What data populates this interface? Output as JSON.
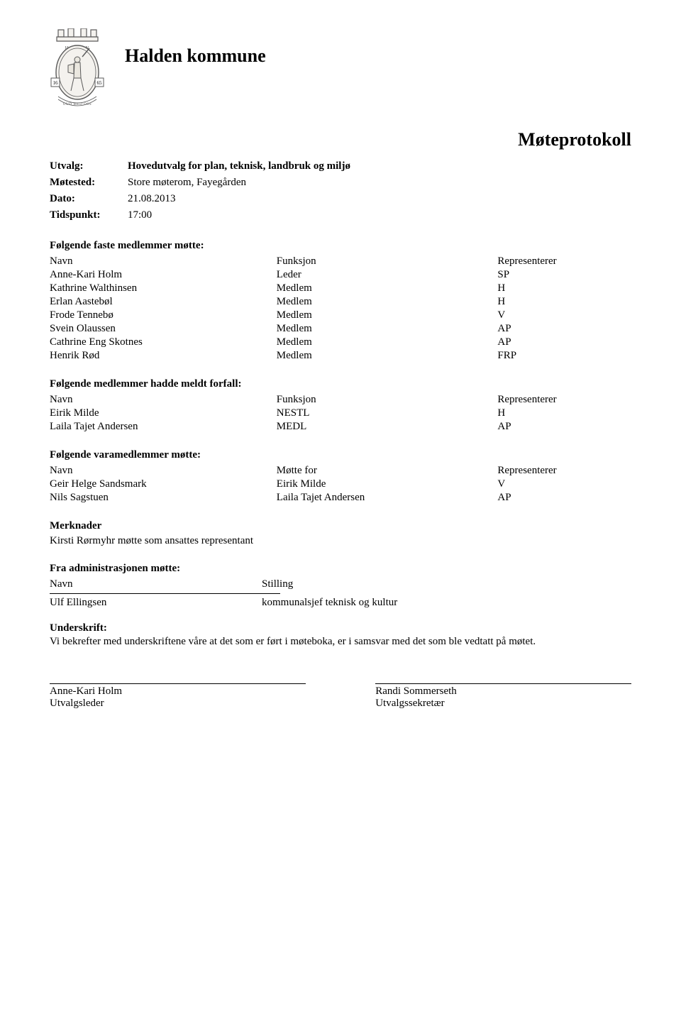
{
  "header": {
    "org": "Halden kommune",
    "doc_title": "Møteprotokoll"
  },
  "meta": {
    "utvalg_label": "Utvalg:",
    "utvalg_value": "Hovedutvalg for plan, teknisk, landbruk og miljø",
    "motested_label": "Møtested:",
    "motested_value": "Store møterom, Fayegården",
    "dato_label": "Dato:",
    "dato_value": "21.08.2013",
    "tidspunkt_label": "Tidspunkt:",
    "tidspunkt_value": "17:00"
  },
  "section1": {
    "title": "Følgende faste medlemmer møtte:",
    "headers": {
      "c1": "Navn",
      "c2": "Funksjon",
      "c3": "Representerer"
    },
    "rows": [
      {
        "c1": "Anne-Kari Holm",
        "c2": "Leder",
        "c3": "SP"
      },
      {
        "c1": "Kathrine Walthinsen",
        "c2": "Medlem",
        "c3": "H"
      },
      {
        "c1": "Erlan Aastebøl",
        "c2": "Medlem",
        "c3": "H"
      },
      {
        "c1": "Frode Tennebø",
        "c2": "Medlem",
        "c3": "V"
      },
      {
        "c1": "Svein Olaussen",
        "c2": "Medlem",
        "c3": "AP"
      },
      {
        "c1": "Cathrine Eng Skotnes",
        "c2": "Medlem",
        "c3": "AP"
      },
      {
        "c1": "Henrik Rød",
        "c2": "Medlem",
        "c3": "FRP"
      }
    ]
  },
  "section2": {
    "title": "Følgende medlemmer hadde meldt forfall:",
    "headers": {
      "c1": "Navn",
      "c2": "Funksjon",
      "c3": "Representerer"
    },
    "rows": [
      {
        "c1": "Eirik Milde",
        "c2": "NESTL",
        "c3": "H"
      },
      {
        "c1": "Laila Tajet Andersen",
        "c2": "MEDL",
        "c3": "AP"
      }
    ]
  },
  "section3": {
    "title": "Følgende varamedlemmer møtte:",
    "headers": {
      "c1": "Navn",
      "c2": "Møtte for",
      "c3": "Representerer"
    },
    "rows": [
      {
        "c1": "Geir Helge Sandsmark",
        "c2": "Eirik Milde",
        "c3": "V"
      },
      {
        "c1": "Nils Sagstuen",
        "c2": "Laila Tajet Andersen",
        "c3": "AP"
      }
    ]
  },
  "merknader": {
    "title": "Merknader",
    "body": "Kirsti Rørmyhr møtte som ansattes representant"
  },
  "section4": {
    "title": "Fra administrasjonen møtte:",
    "headers": {
      "c1": "Navn",
      "c2": "Stilling"
    },
    "rows": [
      {
        "c1": "Ulf Ellingsen",
        "c2": "kommunalsjef teknisk og kultur"
      }
    ]
  },
  "underskrift": {
    "title": "Underskrift:",
    "body": "Vi bekrefter med underskriftene våre at det som er ført i møteboka, er i samsvar med det som ble vedtatt på møtet."
  },
  "signatures": {
    "left_name": "Anne-Kari Holm",
    "left_role": "Utvalgsleder",
    "right_name": "Randi Sommerseth",
    "right_role": "Utvalgssekretær"
  },
  "crest": {
    "year_left": "16",
    "year_right": "65",
    "top_text": "HALDEN",
    "motto": "GUD MED OSS",
    "stroke": "#5a5a5a",
    "fill_bg": "#f4f2ee"
  }
}
